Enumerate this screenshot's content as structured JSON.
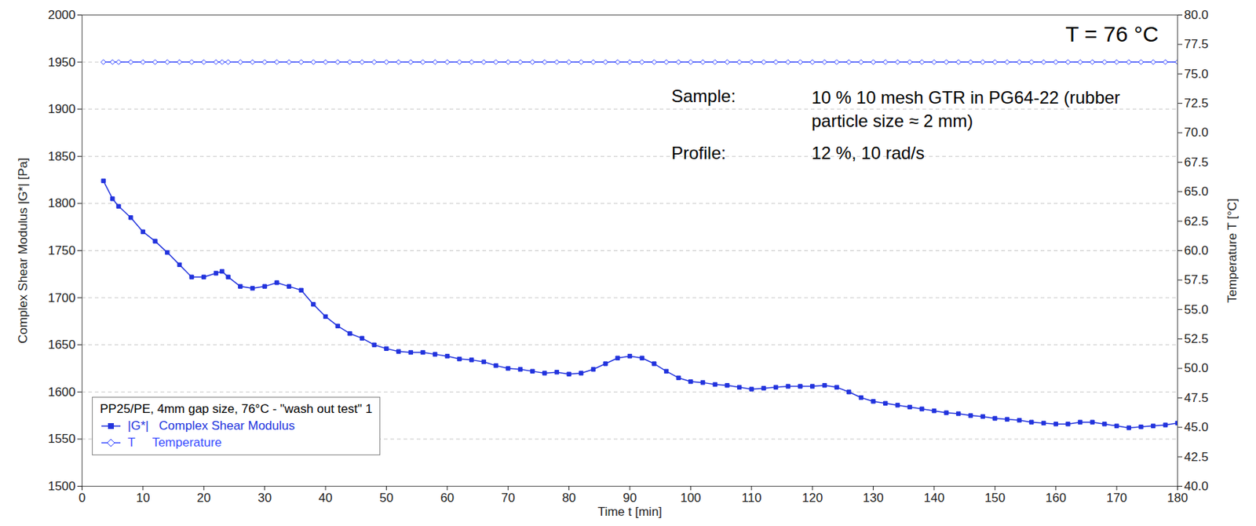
{
  "chart_data": {
    "type": "line",
    "x_label": "Time t [min]",
    "y_label": "Complex Shear Modulus |G*| [Pa]",
    "y2_label": "Temperature T [°C]",
    "legend_title": "PP25/PE, 4mm gap size, 76°C - \"wash out test\" 1",
    "legend": "lower left",
    "grid": true,
    "annotations": [
      "T = 76 °C",
      "Sample:",
      "10 % 10 mesh GTR in PG64-22   (rubber particle size ≈ 2 mm)",
      "Profile:",
      "12 %, 10 rad/s"
    ],
    "xlim": [
      0,
      180
    ],
    "xticks": [
      0,
      10,
      20,
      30,
      40,
      50,
      60,
      70,
      80,
      90,
      100,
      110,
      120,
      130,
      140,
      150,
      160,
      170,
      180
    ],
    "ylim": [
      1500,
      2000
    ],
    "yticks": [
      1500,
      1550,
      1600,
      1650,
      1700,
      1750,
      1800,
      1850,
      1900,
      1950,
      2000
    ],
    "y2lim": [
      40,
      80
    ],
    "y2ticks": [
      {
        "value": 40,
        "label": "40.0"
      },
      42.5,
      {
        "value": 45,
        "label": "45.0"
      },
      47.5,
      {
        "value": 50,
        "label": "50.0"
      },
      52.5,
      {
        "value": 55,
        "label": "55.0"
      },
      57.5,
      {
        "value": 60,
        "label": "60.0"
      },
      62.5,
      {
        "value": 65,
        "label": "65.0"
      },
      67.5,
      {
        "value": 70,
        "label": "70.0"
      },
      72.5,
      {
        "value": 75,
        "label": "75.0"
      },
      77.5,
      {
        "value": 80,
        "label": "80.0"
      }
    ],
    "x": [
      3.5,
      5,
      6,
      8,
      10,
      12,
      14,
      16,
      18,
      20,
      22,
      23,
      24,
      26,
      28,
      30,
      32,
      34,
      36,
      38,
      40,
      42,
      44,
      46,
      48,
      50,
      52,
      54,
      56,
      58,
      60,
      62,
      64,
      66,
      68,
      70,
      72,
      74,
      76,
      78,
      80,
      82,
      84,
      86,
      88,
      90,
      92,
      94,
      96,
      98,
      100,
      102,
      104,
      106,
      108,
      110,
      112,
      114,
      116,
      118,
      120,
      122,
      124,
      126,
      128,
      130,
      132,
      134,
      136,
      138,
      140,
      142,
      144,
      146,
      148,
      150,
      152,
      154,
      156,
      158,
      160,
      162,
      164,
      166,
      168,
      170,
      172,
      174,
      176,
      178,
      180
    ],
    "series": [
      {
        "name": "|G*|   Complex Shear Modulus",
        "color": "#2233dd",
        "marker": "square",
        "line_style": "solid",
        "values": [
          1824,
          1805,
          1797,
          1785,
          1770,
          1760,
          1748,
          1735,
          1722,
          1722,
          1726,
          1728,
          1722,
          1712,
          1710,
          1712,
          1716,
          1712,
          1708,
          1693,
          1680,
          1670,
          1662,
          1657,
          1650,
          1646,
          1643,
          1642,
          1642,
          1640,
          1638,
          1635,
          1634,
          1632,
          1628,
          1625,
          1624,
          1622,
          1620,
          1621,
          1619,
          1620,
          1624,
          1630,
          1636,
          1638,
          1636,
          1630,
          1622,
          1615,
          1611,
          1610,
          1608,
          1607,
          1605,
          1603,
          1604,
          1605,
          1606,
          1606,
          1606,
          1607,
          1605,
          1600,
          1594,
          1590,
          1588,
          1586,
          1584,
          1582,
          1580,
          1578,
          1577,
          1575,
          1574,
          1572,
          1571,
          1570,
          1568,
          1567,
          1566,
          1566,
          1568,
          1568,
          1566,
          1564,
          1562,
          1563,
          1564,
          1565,
          1567
        ]
      },
      {
        "name": "T     Temperature",
        "color": "#3a4cff",
        "marker": "diamond",
        "line_style": "solid",
        "axis": "y2",
        "values": [
          76,
          76,
          76,
          76,
          76,
          76,
          76,
          76,
          76,
          76,
          76,
          76,
          76,
          76,
          76,
          76,
          76,
          76,
          76,
          76,
          76,
          76,
          76,
          76,
          76,
          76,
          76,
          76,
          76,
          76,
          76,
          76,
          76,
          76,
          76,
          76,
          76,
          76,
          76,
          76,
          76,
          76,
          76,
          76,
          76,
          76,
          76,
          76,
          76,
          76,
          76,
          76,
          76,
          76,
          76,
          76,
          76,
          76,
          76,
          76,
          76,
          76,
          76,
          76,
          76,
          76,
          76,
          76,
          76,
          76,
          76,
          76,
          76,
          76,
          76,
          76,
          76,
          76,
          76,
          76,
          76,
          76,
          76,
          76,
          76,
          76,
          76,
          76,
          76,
          76,
          76
        ]
      }
    ]
  }
}
